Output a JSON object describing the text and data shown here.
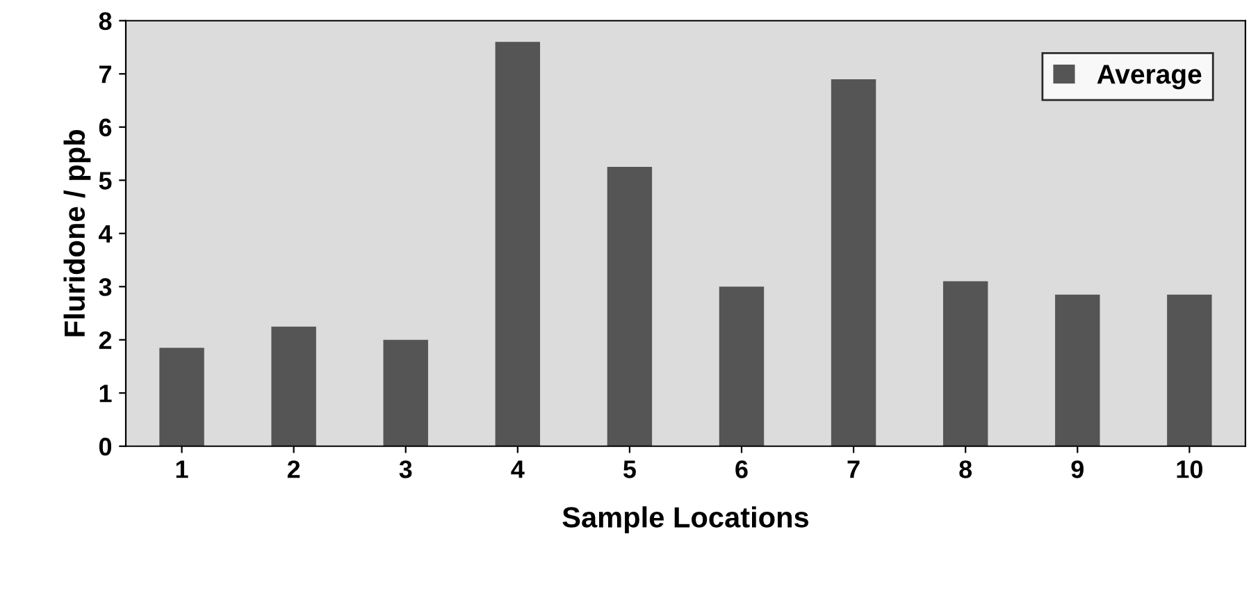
{
  "chart_data": {
    "type": "bar",
    "xlabel": "Sample Locations",
    "ylabel": "Fluridone / ppb",
    "categories": [
      "1",
      "2",
      "3",
      "4",
      "5",
      "6",
      "7",
      "8",
      "9",
      "10"
    ],
    "series": [
      {
        "name": "Average",
        "color": "#555555",
        "values": [
          1.85,
          2.25,
          2.0,
          7.6,
          5.25,
          3.0,
          6.9,
          3.1,
          2.85,
          2.85
        ]
      }
    ],
    "ylim": [
      0,
      8
    ],
    "yticks": [
      0,
      1,
      2,
      3,
      4,
      5,
      6,
      7,
      8
    ],
    "grid": false,
    "legend": "top right"
  }
}
